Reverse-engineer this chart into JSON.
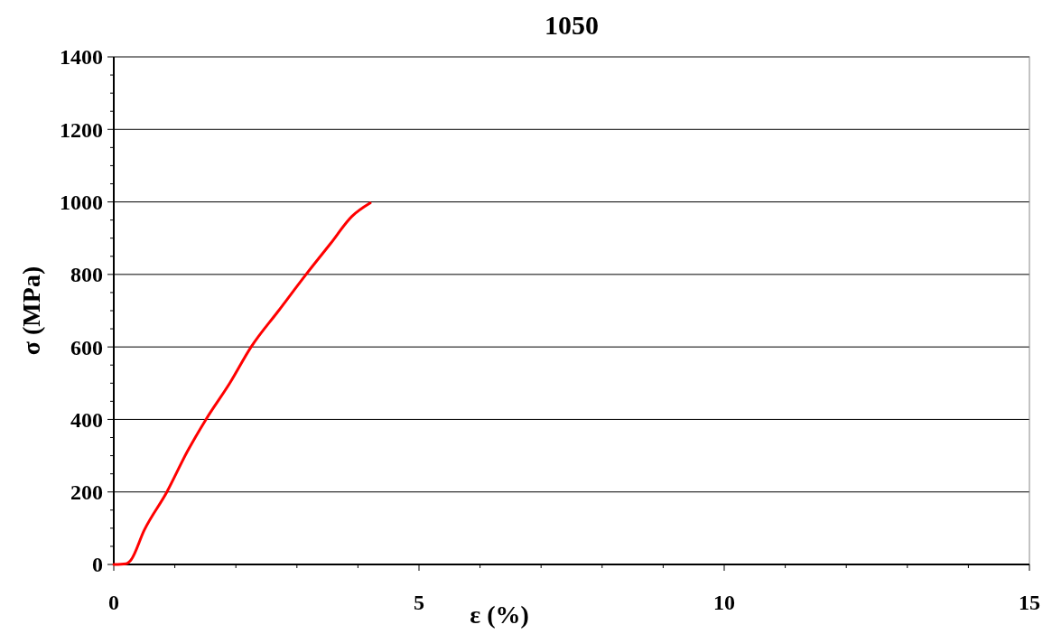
{
  "chart_data": {
    "type": "line",
    "title": "1050",
    "xlabel": "ε (%)",
    "ylabel": "σ (MPa)",
    "xlim": [
      0,
      15
    ],
    "ylim": [
      0,
      1400
    ],
    "xticks": [
      0,
      {
        "value": 1,
        "label": null
      },
      {
        "value": 2,
        "label": null
      },
      {
        "value": 3,
        "label": null
      },
      {
        "value": 4,
        "label": null
      },
      5,
      {
        "value": 6,
        "label": null
      },
      {
        "value": 7,
        "label": null
      },
      {
        "value": 8,
        "label": null
      },
      {
        "value": 9,
        "label": null
      },
      10,
      {
        "value": 11,
        "label": null
      },
      {
        "value": 12,
        "label": null
      },
      {
        "value": 13,
        "label": null
      },
      {
        "value": 14,
        "label": null
      },
      15
    ],
    "yticks": [
      0,
      {
        "value": 50,
        "label": null
      },
      {
        "value": 100,
        "label": null
      },
      {
        "value": 150,
        "label": null
      },
      200,
      {
        "value": 250,
        "label": null
      },
      {
        "value": 300,
        "label": null
      },
      {
        "value": 350,
        "label": null
      },
      400,
      {
        "value": 450,
        "label": null
      },
      {
        "value": 500,
        "label": null
      },
      {
        "value": 550,
        "label": null
      },
      600,
      {
        "value": 650,
        "label": null
      },
      {
        "value": 700,
        "label": null
      },
      {
        "value": 750,
        "label": null
      },
      800,
      {
        "value": 850,
        "label": null
      },
      {
        "value": 900,
        "label": null
      },
      {
        "value": 950,
        "label": null
      },
      1000,
      {
        "value": 1050,
        "label": null
      },
      {
        "value": 1100,
        "label": null
      },
      {
        "value": 1150,
        "label": null
      },
      1200,
      {
        "value": 1250,
        "label": null
      },
      {
        "value": 1300,
        "label": null
      },
      {
        "value": 1350,
        "label": null
      },
      1400
    ],
    "grid": "y",
    "marker": "none",
    "line_style": "solid",
    "series": [
      {
        "color": "#ff0000",
        "x": [
          0,
          0.2,
          0.28,
          0.5,
          0.87,
          1.2,
          1.51,
          1.9,
          2.25,
          2.7,
          3.15,
          3.55,
          3.9,
          4.2
        ],
        "values": [
          0,
          2,
          12,
          95,
          200,
          310,
          400,
          500,
          600,
          700,
          800,
          885,
          960,
          997
        ]
      }
    ]
  }
}
